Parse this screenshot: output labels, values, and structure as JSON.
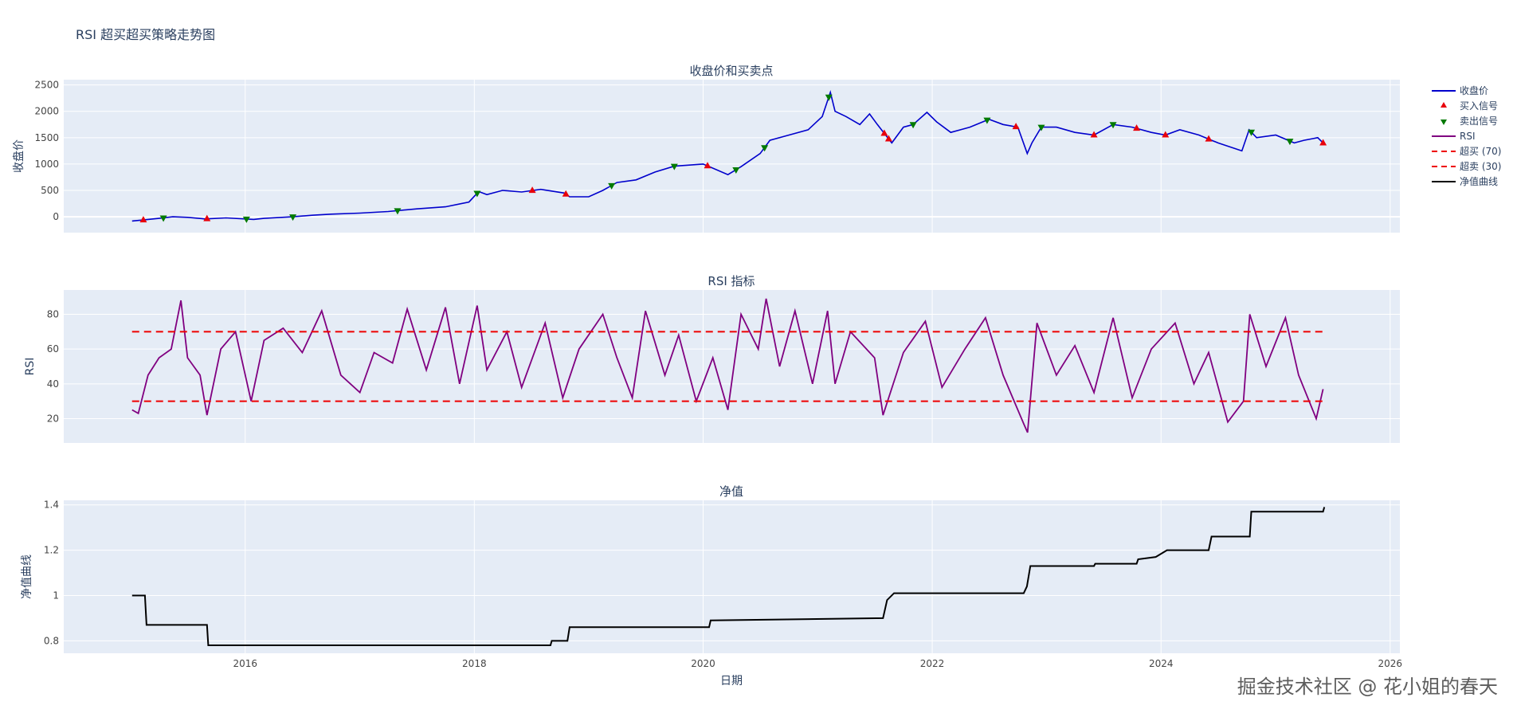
{
  "figure": {
    "title": "RSI 超买超买策略走势图",
    "watermark": "掘金技术社区 @ 花小姐的春天",
    "x_label": "日期",
    "x_range": [
      "2014-06-01",
      "2026-02-01"
    ],
    "x_ticks": [
      {
        "date": "2016-01-01",
        "label": "2016"
      },
      {
        "date": "2018-01-01",
        "label": "2018"
      },
      {
        "date": "2020-01-01",
        "label": "2020"
      },
      {
        "date": "2022-01-01",
        "label": "2022"
      },
      {
        "date": "2024-01-01",
        "label": "2024"
      },
      {
        "date": "2026-01-01",
        "label": "2026"
      }
    ],
    "colors": {
      "price": "#0000cc",
      "buy": "#e8000b",
      "sell": "#007a00",
      "rsi": "#800080",
      "threshold": "#ee0000",
      "nav": "#000000",
      "plot_bg": "#e5ecf6",
      "grid": "#ffffff"
    }
  },
  "legend": [
    {
      "label": "收盘价",
      "kind": "line",
      "color": "#0000cc"
    },
    {
      "label": "买入信号",
      "kind": "tri-up",
      "color": "#e8000b"
    },
    {
      "label": "卖出信号",
      "kind": "tri-down",
      "color": "#007a00"
    },
    {
      "label": "RSI",
      "kind": "line",
      "color": "#800080"
    },
    {
      "label": "超买 (70)",
      "kind": "dash",
      "color": "#ee0000"
    },
    {
      "label": "超卖 (30)",
      "kind": "dash",
      "color": "#ee0000"
    },
    {
      "label": "净值曲线",
      "kind": "line",
      "color": "#000000"
    }
  ],
  "chart_data": [
    {
      "type": "line",
      "title": "收盘价和买卖点",
      "ylabel": "收盘价",
      "ylim": [
        -300,
        2600
      ],
      "y_ticks": [
        0,
        500,
        1000,
        1500,
        2000,
        2500
      ],
      "series": [
        {
          "name": "收盘价",
          "points": [
            [
              "2015-01-05",
              -80
            ],
            [
              "2015-02-10",
              -60
            ],
            [
              "2015-04-01",
              -30
            ],
            [
              "2015-05-15",
              0
            ],
            [
              "2015-07-01",
              -10
            ],
            [
              "2015-08-25",
              -40
            ],
            [
              "2015-11-01",
              -20
            ],
            [
              "2016-01-28",
              -50
            ],
            [
              "2016-03-01",
              -30
            ],
            [
              "2016-06-01",
              0
            ],
            [
              "2016-08-01",
              30
            ],
            [
              "2016-10-01",
              50
            ],
            [
              "2017-01-01",
              70
            ],
            [
              "2017-04-01",
              100
            ],
            [
              "2017-07-01",
              150
            ],
            [
              "2017-10-01",
              190
            ],
            [
              "2017-12-15",
              280
            ],
            [
              "2018-01-15",
              480
            ],
            [
              "2018-02-10",
              420
            ],
            [
              "2018-04-01",
              500
            ],
            [
              "2018-06-01",
              470
            ],
            [
              "2018-08-01",
              520
            ],
            [
              "2018-10-15",
              450
            ],
            [
              "2018-11-01",
              380
            ],
            [
              "2019-01-01",
              380
            ],
            [
              "2019-02-15",
              500
            ],
            [
              "2019-04-01",
              650
            ],
            [
              "2019-06-01",
              700
            ],
            [
              "2019-08-01",
              850
            ],
            [
              "2019-10-01",
              960
            ],
            [
              "2020-01-01",
              1000
            ],
            [
              "2020-03-20",
              800
            ],
            [
              "2020-05-01",
              950
            ],
            [
              "2020-07-01",
              1200
            ],
            [
              "2020-08-01",
              1450
            ],
            [
              "2020-10-01",
              1550
            ],
            [
              "2020-12-01",
              1650
            ],
            [
              "2021-01-15",
              1900
            ],
            [
              "2021-02-10",
              2360
            ],
            [
              "2021-02-25",
              2000
            ],
            [
              "2021-04-01",
              1900
            ],
            [
              "2021-05-15",
              1750
            ],
            [
              "2021-06-15",
              1950
            ],
            [
              "2021-07-10",
              1750
            ],
            [
              "2021-08-05",
              1550
            ],
            [
              "2021-08-25",
              1400
            ],
            [
              "2021-10-01",
              1700
            ],
            [
              "2021-11-01",
              1750
            ],
            [
              "2021-12-15",
              1980
            ],
            [
              "2022-01-15",
              1800
            ],
            [
              "2022-03-01",
              1600
            ],
            [
              "2022-04-01",
              1650
            ],
            [
              "2022-05-01",
              1700
            ],
            [
              "2022-07-01",
              1850
            ],
            [
              "2022-08-15",
              1750
            ],
            [
              "2022-10-01",
              1700
            ],
            [
              "2022-10-31",
              1200
            ],
            [
              "2022-11-15",
              1400
            ],
            [
              "2022-12-15",
              1700
            ],
            [
              "2023-02-01",
              1700
            ],
            [
              "2023-04-01",
              1600
            ],
            [
              "2023-06-01",
              1550
            ],
            [
              "2023-08-01",
              1750
            ],
            [
              "2023-10-01",
              1700
            ],
            [
              "2023-12-01",
              1600
            ],
            [
              "2024-01-15",
              1550
            ],
            [
              "2024-03-01",
              1650
            ],
            [
              "2024-05-01",
              1550
            ],
            [
              "2024-07-01",
              1400
            ],
            [
              "2024-09-15",
              1250
            ],
            [
              "2024-10-08",
              1650
            ],
            [
              "2024-11-01",
              1500
            ],
            [
              "2025-01-01",
              1550
            ],
            [
              "2025-03-01",
              1400
            ],
            [
              "2025-04-01",
              1450
            ],
            [
              "2025-05-15",
              1500
            ],
            [
              "2025-06-01",
              1400
            ]
          ]
        }
      ],
      "buy_signals": [
        "2015-02-10",
        "2015-09-01",
        "2018-07-05",
        "2018-10-20",
        "2020-01-15",
        "2021-08-01",
        "2021-08-15",
        "2022-09-25",
        "2023-06-01",
        "2023-10-15",
        "2024-01-15",
        "2024-06-01",
        "2025-06-01"
      ],
      "sell_signals": [
        "2015-04-15",
        "2016-01-05",
        "2016-06-01",
        "2017-05-01",
        "2018-01-10",
        "2019-03-15",
        "2019-10-01",
        "2020-04-15",
        "2020-07-15",
        "2021-02-05",
        "2021-11-01",
        "2022-06-25",
        "2022-12-15",
        "2023-08-01",
        "2024-10-15",
        "2025-02-15"
      ]
    },
    {
      "type": "line",
      "title": "RSI 指标",
      "ylabel": "RSI",
      "ylim": [
        6,
        94
      ],
      "y_ticks": [
        20,
        40,
        60,
        80
      ],
      "series": [
        {
          "name": "RSI",
          "points": [
            [
              "2015-01-05",
              25
            ],
            [
              "2015-01-25",
              23
            ],
            [
              "2015-02-25",
              45
            ],
            [
              "2015-04-01",
              55
            ],
            [
              "2015-05-10",
              60
            ],
            [
              "2015-06-10",
              88
            ],
            [
              "2015-07-01",
              55
            ],
            [
              "2015-08-10",
              45
            ],
            [
              "2015-09-01",
              22
            ],
            [
              "2015-10-15",
              60
            ],
            [
              "2015-12-01",
              70
            ],
            [
              "2016-01-20",
              30
            ],
            [
              "2016-03-01",
              65
            ],
            [
              "2016-05-01",
              72
            ],
            [
              "2016-07-01",
              58
            ],
            [
              "2016-09-01",
              82
            ],
            [
              "2016-11-01",
              45
            ],
            [
              "2017-01-01",
              35
            ],
            [
              "2017-02-15",
              58
            ],
            [
              "2017-04-15",
              52
            ],
            [
              "2017-06-01",
              83
            ],
            [
              "2017-08-01",
              48
            ],
            [
              "2017-10-01",
              84
            ],
            [
              "2017-11-15",
              40
            ],
            [
              "2018-01-10",
              85
            ],
            [
              "2018-02-10",
              48
            ],
            [
              "2018-04-15",
              70
            ],
            [
              "2018-06-01",
              38
            ],
            [
              "2018-08-15",
              75
            ],
            [
              "2018-10-10",
              32
            ],
            [
              "2018-12-01",
              60
            ],
            [
              "2019-02-15",
              80
            ],
            [
              "2019-04-01",
              55
            ],
            [
              "2019-05-20",
              32
            ],
            [
              "2019-07-01",
              82
            ],
            [
              "2019-09-01",
              45
            ],
            [
              "2019-10-15",
              68
            ],
            [
              "2019-12-10",
              30
            ],
            [
              "2020-02-01",
              55
            ],
            [
              "2020-03-20",
              25
            ],
            [
              "2020-05-01",
              80
            ],
            [
              "2020-06-25",
              60
            ],
            [
              "2020-07-20",
              89
            ],
            [
              "2020-09-01",
              50
            ],
            [
              "2020-10-20",
              82
            ],
            [
              "2020-12-15",
              40
            ],
            [
              "2021-02-01",
              82
            ],
            [
              "2021-02-25",
              40
            ],
            [
              "2021-04-15",
              70
            ],
            [
              "2021-07-01",
              55
            ],
            [
              "2021-07-28",
              22
            ],
            [
              "2021-10-01",
              58
            ],
            [
              "2021-12-10",
              76
            ],
            [
              "2022-02-01",
              38
            ],
            [
              "2022-04-15",
              60
            ],
            [
              "2022-06-20",
              78
            ],
            [
              "2022-08-15",
              45
            ],
            [
              "2022-10-20",
              17
            ],
            [
              "2022-11-01",
              12
            ],
            [
              "2022-12-01",
              75
            ],
            [
              "2023-02-01",
              45
            ],
            [
              "2023-04-01",
              62
            ],
            [
              "2023-06-01",
              35
            ],
            [
              "2023-08-01",
              78
            ],
            [
              "2023-10-01",
              32
            ],
            [
              "2023-12-01",
              60
            ],
            [
              "2024-02-15",
              75
            ],
            [
              "2024-04-15",
              40
            ],
            [
              "2024-06-01",
              58
            ],
            [
              "2024-08-01",
              18
            ],
            [
              "2024-09-20",
              30
            ],
            [
              "2024-10-10",
              80
            ],
            [
              "2024-12-01",
              50
            ],
            [
              "2025-02-01",
              78
            ],
            [
              "2025-03-15",
              45
            ],
            [
              "2025-05-10",
              20
            ],
            [
              "2025-06-01",
              37
            ]
          ]
        }
      ],
      "overbought": {
        "label": "超买 (70)",
        "value": 70
      },
      "oversold": {
        "label": "超卖 (30)",
        "value": 30
      }
    },
    {
      "type": "line",
      "title": "净值",
      "ylabel": "净值曲线",
      "ylim": [
        0.745,
        1.42
      ],
      "y_ticks": [
        {
          "v": 0.8,
          "label": "0.8"
        },
        {
          "v": 1.0,
          "label": "1"
        },
        {
          "v": 1.2,
          "label": "1.2"
        },
        {
          "v": 1.4,
          "label": "1.4"
        }
      ],
      "series": [
        {
          "name": "净值曲线",
          "points": [
            [
              "2015-01-05",
              1.0
            ],
            [
              "2015-02-15",
              1.0
            ],
            [
              "2015-02-20",
              0.87
            ],
            [
              "2015-09-01",
              0.87
            ],
            [
              "2015-09-05",
              0.78
            ],
            [
              "2018-09-01",
              0.78
            ],
            [
              "2018-09-05",
              0.8
            ],
            [
              "2018-10-25",
              0.8
            ],
            [
              "2018-11-01",
              0.86
            ],
            [
              "2020-01-20",
              0.86
            ],
            [
              "2020-01-25",
              0.89
            ],
            [
              "2021-07-28",
              0.9
            ],
            [
              "2021-08-10",
              0.98
            ],
            [
              "2021-09-01",
              1.01
            ],
            [
              "2022-10-20",
              1.01
            ],
            [
              "2022-10-30",
              1.04
            ],
            [
              "2022-11-10",
              1.13
            ],
            [
              "2023-06-01",
              1.13
            ],
            [
              "2023-06-05",
              1.14
            ],
            [
              "2023-10-15",
              1.14
            ],
            [
              "2023-10-20",
              1.16
            ],
            [
              "2023-12-15",
              1.17
            ],
            [
              "2024-01-20",
              1.2
            ],
            [
              "2024-06-01",
              1.2
            ],
            [
              "2024-06-10",
              1.26
            ],
            [
              "2024-10-10",
              1.26
            ],
            [
              "2024-10-15",
              1.37
            ],
            [
              "2025-06-01",
              1.37
            ],
            [
              "2025-06-05",
              1.39
            ]
          ]
        }
      ]
    }
  ]
}
